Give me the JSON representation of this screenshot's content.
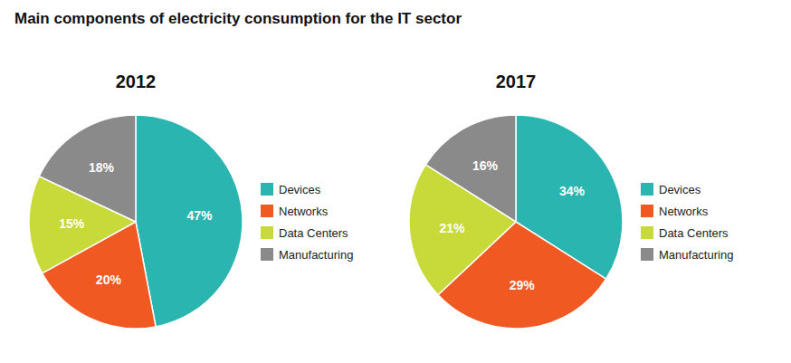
{
  "chart_data": {
    "type": "pie",
    "title": "Main components of electricity consumption for the IT sector",
    "categories": [
      "Devices",
      "Networks",
      "Data Centers",
      "Manufacturing"
    ],
    "colors": [
      "#2ab5b0",
      "#f05a22",
      "#c8d93a",
      "#8a8a8a"
    ],
    "series": [
      {
        "name": "2012",
        "values": [
          47,
          20,
          15,
          18
        ],
        "value_labels": [
          "47%",
          "20%",
          "15%",
          "18%"
        ]
      },
      {
        "name": "2017",
        "values": [
          34,
          29,
          21,
          16
        ],
        "value_labels": [
          "34%",
          "29%",
          "21%",
          "16%"
        ]
      }
    ],
    "data_labels": true,
    "legend": "right"
  }
}
